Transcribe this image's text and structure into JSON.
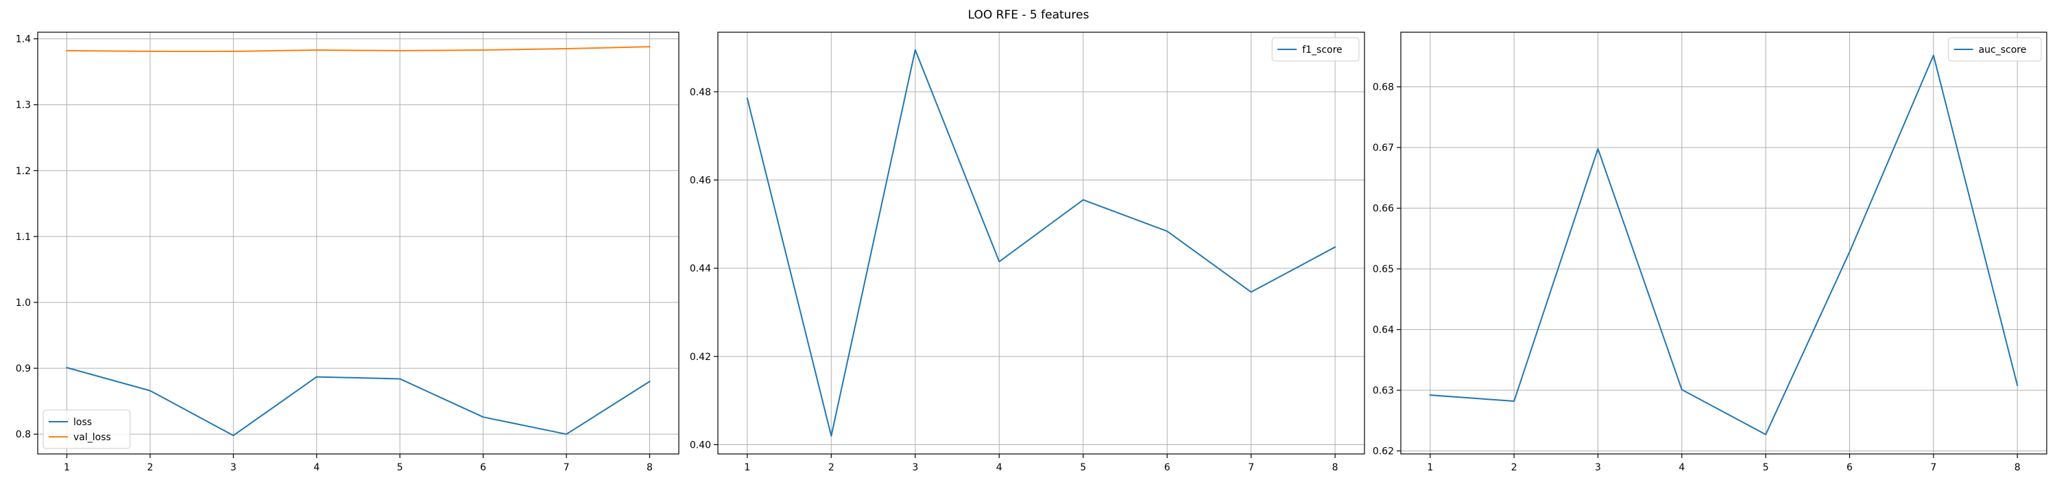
{
  "suptitle": "LOO RFE - 5 features",
  "chart_data": [
    {
      "type": "line",
      "title": "",
      "xlabel": "",
      "ylabel": "",
      "x": [
        1,
        2,
        3,
        4,
        5,
        6,
        7,
        8
      ],
      "xticks": [
        "1",
        "2",
        "3",
        "4",
        "5",
        "6",
        "7",
        "8"
      ],
      "xlim": [
        0.65,
        8.35
      ],
      "ylim": [
        0.77,
        1.41
      ],
      "yticks": [
        "0.8",
        "0.9",
        "1.0",
        "1.1",
        "1.2",
        "1.3",
        "1.4"
      ],
      "ytick_values": [
        0.8,
        0.9,
        1.0,
        1.1,
        1.2,
        1.3,
        1.4
      ],
      "grid": true,
      "legend_position": "lower-left",
      "series": [
        {
          "name": "loss",
          "color": "#1f77b4",
          "values": [
            0.901,
            0.866,
            0.798,
            0.887,
            0.884,
            0.826,
            0.8,
            0.88
          ]
        },
        {
          "name": "val_loss",
          "color": "#ff7f0e",
          "values": [
            1.382,
            1.381,
            1.381,
            1.383,
            1.382,
            1.383,
            1.385,
            1.388
          ]
        }
      ]
    },
    {
      "type": "line",
      "title": "",
      "xlabel": "",
      "ylabel": "",
      "x": [
        1,
        2,
        3,
        4,
        5,
        6,
        7,
        8
      ],
      "xticks": [
        "1",
        "2",
        "3",
        "4",
        "5",
        "6",
        "7",
        "8"
      ],
      "xlim": [
        0.65,
        8.35
      ],
      "ylim": [
        0.3979,
        0.4935
      ],
      "yticks": [
        "0.40",
        "0.42",
        "0.44",
        "0.46",
        "0.48"
      ],
      "ytick_values": [
        0.4,
        0.42,
        0.44,
        0.46,
        0.48
      ],
      "grid": true,
      "legend_position": "top-right",
      "series": [
        {
          "name": "f1_score",
          "color": "#1f77b4",
          "values": [
            0.4785,
            0.402,
            0.4895,
            0.4415,
            0.4555,
            0.4484,
            0.4346,
            0.4448
          ]
        }
      ]
    },
    {
      "type": "line",
      "title": "",
      "xlabel": "",
      "ylabel": "",
      "x": [
        1,
        2,
        3,
        4,
        5,
        6,
        7,
        8
      ],
      "xticks": [
        "1",
        "2",
        "3",
        "4",
        "5",
        "6",
        "7",
        "8"
      ],
      "xlim": [
        0.65,
        8.35
      ],
      "ylim": [
        0.6195,
        0.689
      ],
      "yticks": [
        "0.62",
        "0.63",
        "0.64",
        "0.65",
        "0.66",
        "0.67",
        "0.68"
      ],
      "ytick_values": [
        0.62,
        0.63,
        0.64,
        0.65,
        0.66,
        0.67,
        0.68
      ],
      "grid": true,
      "legend_position": "top-right",
      "series": [
        {
          "name": "auc_score",
          "color": "#1f77b4",
          "values": [
            0.6292,
            0.6282,
            0.6698,
            0.6301,
            0.6227,
            0.6528,
            0.6852,
            0.6308
          ]
        }
      ]
    }
  ]
}
